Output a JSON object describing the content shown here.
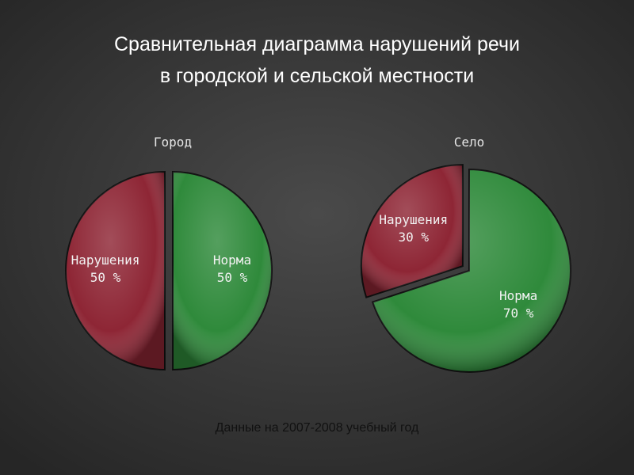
{
  "title": "Сравнительная диаграмма нарушений речи",
  "title_line2": "в городской и сельской местности",
  "note": "Данные на 2007-2008 учебный год",
  "chart_data": [
    {
      "type": "pie",
      "title": "Город",
      "categories": [
        "Нарушения",
        "Норма"
      ],
      "values": [
        50,
        50
      ],
      "value_labels": [
        "50 %",
        "50 %"
      ],
      "colors": [
        "#8e2635",
        "#2f8a3b"
      ]
    },
    {
      "type": "pie",
      "title": "Село",
      "categories": [
        "Нарушения",
        "Норма"
      ],
      "values": [
        30,
        70
      ],
      "value_labels": [
        "30 %",
        "70 %"
      ],
      "colors": [
        "#8e2635",
        "#2f8a3b"
      ]
    }
  ]
}
